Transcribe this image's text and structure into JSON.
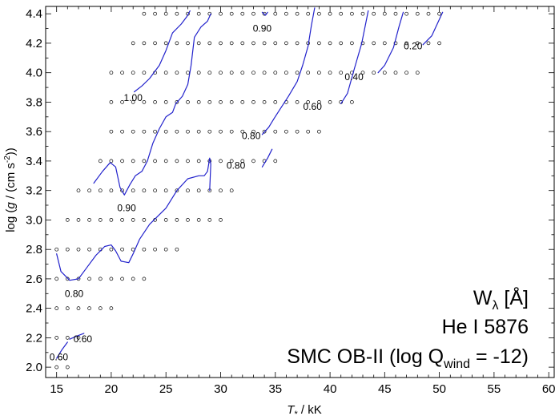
{
  "chart_data": {
    "type": "line",
    "colors": {
      "contour": "#2222cc",
      "grid_point": "#000000",
      "frame": "#000000"
    },
    "x_axis": {
      "label": "T",
      "label_sub": "*",
      "label_unit": " / kK",
      "lim": [
        14,
        60.5
      ],
      "ticks": [
        15,
        20,
        25,
        30,
        35,
        40,
        45,
        50,
        55,
        60
      ]
    },
    "y_axis": {
      "label_start": "log (",
      "label_g": "g",
      "label_mid": " / (cm s",
      "label_exp": "-2",
      "label_end": "))",
      "lim": [
        1.93,
        4.45
      ],
      "ticks": [
        2.0,
        2.2,
        2.4,
        2.6,
        2.8,
        3.0,
        3.2,
        3.4,
        3.6,
        3.8,
        4.0,
        4.2,
        4.4
      ],
      "tick_labels": [
        "2.0",
        "2.2",
        "2.4",
        "2.6",
        "2.8",
        "3.0",
        "3.2",
        "3.4",
        "3.6",
        "3.8",
        "4.0",
        "4.2",
        "4.4"
      ]
    },
    "annotation": {
      "line1_main": "W",
      "line1_sub": "λ",
      "line1_unit": " [Å]",
      "line2": "He I 5876",
      "line3_main": "SMC OB-II (log Q",
      "line3_sub": "wind",
      "line3_end": " = -12)"
    },
    "grid_rows": [
      {
        "logg": 4.4,
        "teff": [
          23,
          24,
          25,
          26,
          27,
          28,
          29,
          30,
          31,
          32,
          33,
          34,
          35,
          36,
          37,
          38,
          39,
          40,
          41,
          42,
          43,
          44,
          45,
          46,
          47,
          48,
          49,
          50
        ]
      },
      {
        "logg": 4.2,
        "teff": [
          22,
          23,
          24,
          25,
          26,
          27,
          28,
          29,
          30,
          31,
          32,
          33,
          34,
          35,
          36,
          37,
          38,
          39,
          40,
          41,
          42,
          43,
          44,
          45,
          46,
          47,
          48,
          49,
          50
        ]
      },
      {
        "logg": 4.0,
        "teff": [
          20,
          21,
          22,
          23,
          24,
          25,
          26,
          27,
          28,
          29,
          30,
          31,
          32,
          33,
          34,
          35,
          36,
          37,
          38,
          39,
          40,
          41,
          42,
          43,
          44,
          45,
          46,
          47,
          48
        ]
      },
      {
        "logg": 3.8,
        "teff": [
          20,
          21,
          22,
          23,
          24,
          25,
          26,
          27,
          28,
          29,
          30,
          31,
          32,
          33,
          34,
          35,
          36,
          37,
          38,
          39,
          40,
          41,
          42
        ]
      },
      {
        "logg": 3.6,
        "teff": [
          20,
          21,
          22,
          23,
          24,
          25,
          26,
          27,
          28,
          29,
          30,
          31,
          32,
          33,
          34,
          35,
          36,
          37,
          38,
          39
        ]
      },
      {
        "logg": 3.4,
        "teff": [
          19,
          20,
          21,
          22,
          23,
          24,
          25,
          26,
          27,
          28,
          29,
          30,
          31,
          32,
          33,
          34,
          35
        ]
      },
      {
        "logg": 3.2,
        "teff": [
          17,
          18,
          19,
          20,
          21,
          22,
          23,
          24,
          25,
          26,
          27,
          28,
          29,
          30,
          31
        ]
      },
      {
        "logg": 3.0,
        "teff": [
          16,
          17,
          18,
          19,
          20,
          21,
          22,
          23,
          24,
          25,
          26,
          27,
          28,
          29,
          30
        ]
      },
      {
        "logg": 2.8,
        "teff": [
          15,
          16,
          17,
          18,
          19,
          20,
          21,
          22,
          23,
          24,
          25,
          26
        ]
      },
      {
        "logg": 2.6,
        "teff": [
          15,
          16,
          17,
          18,
          19,
          20,
          21,
          22,
          23
        ]
      },
      {
        "logg": 2.4,
        "teff": [
          15,
          16,
          17,
          18,
          19,
          20
        ]
      },
      {
        "logg": 2.2,
        "teff": [
          15,
          16,
          17
        ]
      },
      {
        "logg": 2.0,
        "teff": [
          15,
          16
        ]
      }
    ],
    "contours": [
      {
        "points": [
          [
            15.0,
            2.06
          ],
          [
            15.5,
            2.12
          ],
          [
            16.0,
            2.17
          ]
        ]
      },
      {
        "points": [
          [
            16.2,
            2.19
          ],
          [
            16.8,
            2.21
          ],
          [
            17.5,
            2.23
          ]
        ]
      },
      {
        "points": [
          [
            15.0,
            2.77
          ],
          [
            15.4,
            2.65
          ],
          [
            16.2,
            2.59
          ],
          [
            17.0,
            2.6
          ],
          [
            17.8,
            2.68
          ],
          [
            18.6,
            2.76
          ],
          [
            19.4,
            2.82
          ],
          [
            20.0,
            2.83
          ],
          [
            20.4,
            2.79
          ],
          [
            20.9,
            2.72
          ],
          [
            21.6,
            2.71
          ],
          [
            22.0,
            2.77
          ],
          [
            22.6,
            2.87
          ],
          [
            23.5,
            2.97
          ],
          [
            25.0,
            3.08
          ],
          [
            26.0,
            3.2
          ],
          [
            27.0,
            3.28
          ],
          [
            28.0,
            3.3
          ],
          [
            28.5,
            3.3
          ],
          [
            28.8,
            3.33
          ],
          [
            29.0,
            3.42
          ],
          [
            29.1,
            3.38
          ],
          [
            29.0,
            3.2
          ]
        ]
      },
      {
        "points": [
          [
            18.4,
            3.25
          ],
          [
            19.2,
            3.33
          ],
          [
            19.9,
            3.39
          ],
          [
            20.4,
            3.36
          ],
          [
            20.8,
            3.22
          ],
          [
            21.2,
            3.17
          ],
          [
            21.7,
            3.24
          ],
          [
            22.2,
            3.3
          ],
          [
            22.8,
            3.33
          ],
          [
            23.3,
            3.4
          ],
          [
            23.8,
            3.52
          ],
          [
            24.4,
            3.62
          ],
          [
            25.0,
            3.7
          ],
          [
            25.6,
            3.73
          ],
          [
            25.9,
            3.79
          ],
          [
            26.5,
            3.84
          ],
          [
            27.0,
            3.92
          ],
          [
            27.3,
            4.05
          ],
          [
            27.6,
            4.24
          ],
          [
            28.2,
            4.31
          ],
          [
            28.8,
            4.35
          ],
          [
            29.1,
            4.4
          ]
        ]
      },
      {
        "points": [
          [
            22.1,
            3.87
          ],
          [
            22.8,
            3.91
          ],
          [
            23.5,
            3.96
          ],
          [
            24.4,
            4.05
          ],
          [
            25.0,
            4.15
          ],
          [
            25.6,
            4.27
          ],
          [
            26.4,
            4.33
          ],
          [
            26.9,
            4.38
          ],
          [
            27.2,
            4.42
          ]
        ]
      },
      {
        "points": [
          [
            33.8,
            4.41
          ],
          [
            34.1,
            4.39
          ],
          [
            34.3,
            4.41
          ]
        ]
      },
      {
        "points": [
          [
            33.8,
            3.36
          ],
          [
            34.3,
            3.42
          ],
          [
            34.7,
            3.48
          ]
        ]
      },
      {
        "points": [
          [
            33.8,
            3.58
          ],
          [
            34.4,
            3.63
          ],
          [
            34.9,
            3.69
          ],
          [
            35.5,
            3.76
          ],
          [
            36.2,
            3.84
          ],
          [
            37.0,
            3.94
          ],
          [
            37.5,
            4.05
          ],
          [
            38.0,
            4.18
          ],
          [
            38.3,
            4.32
          ],
          [
            38.6,
            4.44
          ]
        ]
      },
      {
        "points": [
          [
            41.0,
            3.79
          ],
          [
            41.6,
            3.86
          ],
          [
            42.2,
            4.02
          ],
          [
            42.9,
            4.2
          ],
          [
            43.5,
            4.42
          ]
        ]
      },
      {
        "points": [
          [
            44.4,
            4.0
          ],
          [
            45.0,
            4.05
          ],
          [
            45.8,
            4.17
          ],
          [
            46.3,
            4.31
          ],
          [
            46.7,
            4.41
          ]
        ]
      },
      {
        "points": [
          [
            48.5,
            4.19
          ],
          [
            49.3,
            4.25
          ],
          [
            49.8,
            4.33
          ],
          [
            50.3,
            4.41
          ]
        ]
      }
    ],
    "contour_labels": [
      {
        "text": "0.60",
        "x": 15.2,
        "y": 2.07
      },
      {
        "text": "0.60",
        "x": 17.4,
        "y": 2.19
      },
      {
        "text": "0.80",
        "x": 16.6,
        "y": 2.5
      },
      {
        "text": "0.90",
        "x": 21.4,
        "y": 3.08
      },
      {
        "text": "1.00",
        "x": 22.0,
        "y": 3.83
      },
      {
        "text": "0.90",
        "x": 33.8,
        "y": 4.3
      },
      {
        "text": "0.80",
        "x": 31.4,
        "y": 3.37
      },
      {
        "text": "0.80",
        "x": 32.8,
        "y": 3.57
      },
      {
        "text": "0.60",
        "x": 38.4,
        "y": 3.77
      },
      {
        "text": "0.40",
        "x": 42.2,
        "y": 3.97
      },
      {
        "text": "0.20",
        "x": 47.6,
        "y": 4.18
      }
    ]
  }
}
